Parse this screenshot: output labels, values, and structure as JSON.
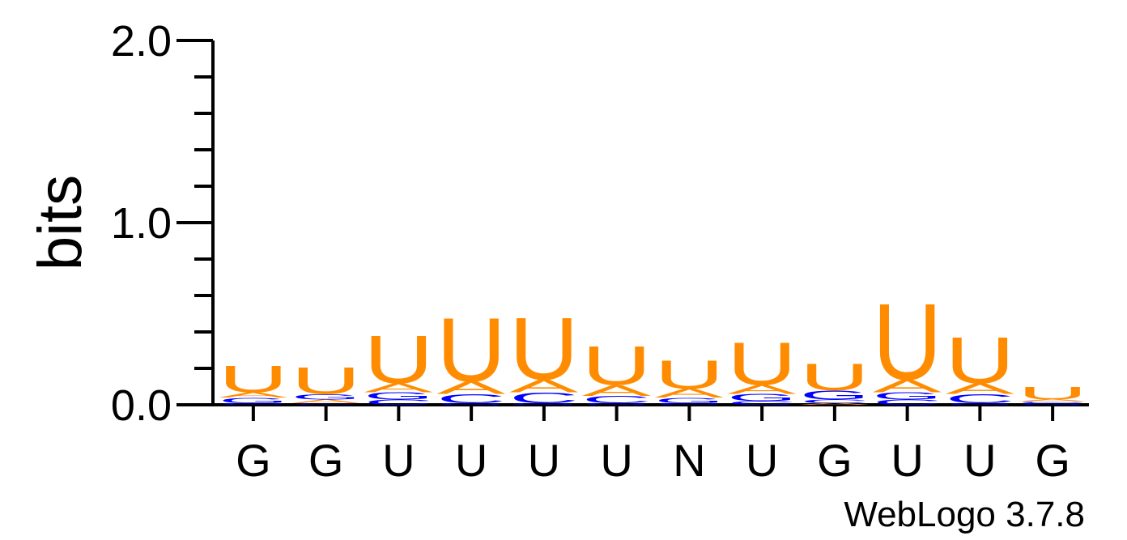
{
  "chart_data": {
    "type": "sequence_logo",
    "ylabel": "bits",
    "ylim": [
      0,
      2.0
    ],
    "yticks": [
      "0.0",
      "1.0",
      "2.0"
    ],
    "positions": [
      "G",
      "G",
      "U",
      "U",
      "U",
      "U",
      "N",
      "U",
      "G",
      "U",
      "U",
      "G"
    ],
    "colors": {
      "U": "#ff8c00",
      "A": "#ff8c00",
      "G": "#0000ff",
      "C": "#0000ff"
    },
    "stacks": [
      [
        {
          "letter": "C",
          "bits": 0.01
        },
        {
          "letter": "G",
          "bits": 0.03
        },
        {
          "letter": "A",
          "bits": 0.03
        },
        {
          "letter": "U",
          "bits": 0.15
        }
      ],
      [
        {
          "letter": "C",
          "bits": 0.01
        },
        {
          "letter": "A",
          "bits": 0.02
        },
        {
          "letter": "G",
          "bits": 0.03
        },
        {
          "letter": "U",
          "bits": 0.15
        }
      ],
      [
        {
          "letter": "C",
          "bits": 0.03
        },
        {
          "letter": "G",
          "bits": 0.04
        },
        {
          "letter": "A",
          "bits": 0.05
        },
        {
          "letter": "U",
          "bits": 0.27
        }
      ],
      [
        {
          "letter": "G",
          "bits": 0.01
        },
        {
          "letter": "C",
          "bits": 0.05
        },
        {
          "letter": "A",
          "bits": 0.07
        },
        {
          "letter": "U",
          "bits": 0.36
        }
      ],
      [
        {
          "letter": "G",
          "bits": 0.01
        },
        {
          "letter": "C",
          "bits": 0.06
        },
        {
          "letter": "A",
          "bits": 0.07
        },
        {
          "letter": "U",
          "bits": 0.35
        }
      ],
      [
        {
          "letter": "G",
          "bits": 0.01
        },
        {
          "letter": "C",
          "bits": 0.04
        },
        {
          "letter": "A",
          "bits": 0.06
        },
        {
          "letter": "U",
          "bits": 0.22
        }
      ],
      [
        {
          "letter": "C",
          "bits": 0.01
        },
        {
          "letter": "G",
          "bits": 0.03
        },
        {
          "letter": "A",
          "bits": 0.05
        },
        {
          "letter": "U",
          "bits": 0.16
        }
      ],
      [
        {
          "letter": "C",
          "bits": 0.02
        },
        {
          "letter": "G",
          "bits": 0.04
        },
        {
          "letter": "A",
          "bits": 0.05
        },
        {
          "letter": "U",
          "bits": 0.24
        }
      ],
      [
        {
          "letter": "A",
          "bits": 0.01
        },
        {
          "letter": "C",
          "bits": 0.02
        },
        {
          "letter": "G",
          "bits": 0.05
        },
        {
          "letter": "U",
          "bits": 0.15
        }
      ],
      [
        {
          "letter": "C",
          "bits": 0.03
        },
        {
          "letter": "G",
          "bits": 0.04
        },
        {
          "letter": "A",
          "bits": 0.07
        },
        {
          "letter": "U",
          "bits": 0.43
        }
      ],
      [
        {
          "letter": "G",
          "bits": 0.01
        },
        {
          "letter": "C",
          "bits": 0.05
        },
        {
          "letter": "A",
          "bits": 0.06
        },
        {
          "letter": "U",
          "bits": 0.26
        }
      ],
      [
        {
          "letter": "G",
          "bits": 0.01
        },
        {
          "letter": "C",
          "bits": 0.01
        },
        {
          "letter": "A",
          "bits": 0.01
        },
        {
          "letter": "U",
          "bits": 0.07
        }
      ]
    ]
  },
  "credit": "WebLogo 3.7.8"
}
